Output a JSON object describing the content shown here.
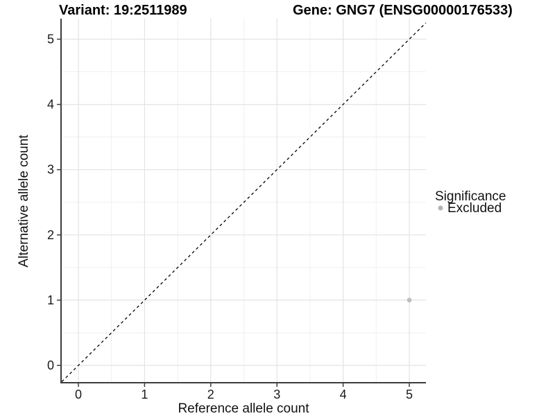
{
  "titles": {
    "variant": "Variant: 19:2511989",
    "gene": "Gene: GNG7 (ENSG00000176533)"
  },
  "chart_data": {
    "type": "scatter",
    "title_left": "Variant: 19:2511989",
    "title_right": "Gene: GNG7 (ENSG00000176533)",
    "xlabel": "Reference allele count",
    "ylabel": "Alternative allele count",
    "xlim": [
      -0.25,
      5.25
    ],
    "ylim": [
      -0.25,
      5.3
    ],
    "x_ticks": [
      0,
      1,
      2,
      3,
      4,
      5
    ],
    "y_ticks": [
      0,
      1,
      2,
      3,
      4,
      5
    ],
    "grid": {
      "major": true,
      "minor": true,
      "minor_interval": 0.5
    },
    "reference_line": {
      "kind": "identity y=x",
      "style": "dashed",
      "color": "#000000"
    },
    "series": [
      {
        "name": "Excluded",
        "color": "#bebebe",
        "points": [
          {
            "x": 5,
            "y": 1
          }
        ]
      }
    ],
    "legend": {
      "title": "Significance",
      "position": "right-center",
      "entries": [
        {
          "label": "Excluded",
          "color": "#b3b3b3"
        }
      ]
    }
  },
  "colors": {
    "background": "#ffffff",
    "grid_major": "#e3e3e3",
    "grid_minor": "#f0f0f0",
    "axis_line": "#3c3c3c",
    "point": "#bebebe"
  }
}
